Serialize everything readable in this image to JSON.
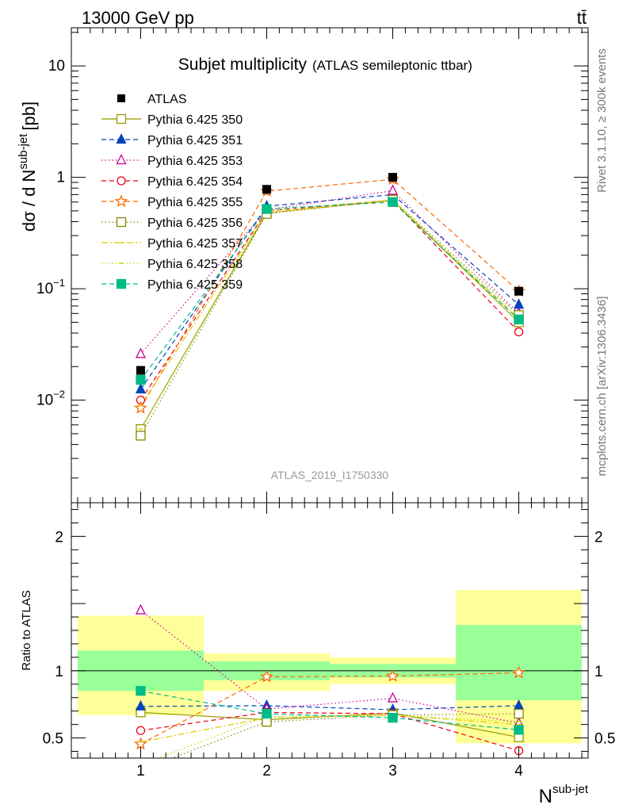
{
  "header": {
    "energy_label": "13000 GeV pp",
    "process_label": "tt̄"
  },
  "side_labels": {
    "rivet": "Rivet 3.1.10, ≥ 300k events",
    "mcplots": "mcplots.cern.ch [arXiv:1306.3436]"
  },
  "chart_data": {
    "type": "scatter",
    "title": "Subjet multiplicity",
    "subtitle": "(ATLAS semileptonic ttbar)",
    "analysis_id": "ATLAS_2019_I1750330",
    "xlabel": "N",
    "xlabel_sup": "sub-jet",
    "ylabel_main": "dσ / d N",
    "ylabel_sup": "sub-jet",
    "ylabel_unit": "[pb]",
    "ratio_ylabel": "Ratio to ATLAS",
    "x": [
      1,
      2,
      3,
      4
    ],
    "xlim": [
      0.45,
      4.55
    ],
    "main_ylim_log": [
      0.0012,
      22
    ],
    "ratio_ylim": [
      0.35,
      2.25
    ],
    "x_tick_labels": [
      "1",
      "2",
      "3",
      "4"
    ],
    "main_y_tick_labels": [
      {
        "value": 10,
        "base": "10",
        "exp": ""
      },
      {
        "value": 1,
        "base": "1",
        "exp": ""
      },
      {
        "value": 0.1,
        "base": "10",
        "exp": "−1"
      },
      {
        "value": 0.01,
        "base": "10",
        "exp": "−2"
      }
    ],
    "ratio_y_tick_labels": [
      {
        "value": 2,
        "label": "2"
      },
      {
        "value": 1,
        "label": "1"
      },
      {
        "value": 0.5,
        "label": "0.5"
      }
    ],
    "data_series": {
      "name": "ATLAS",
      "values": [
        0.0185,
        0.78,
        1.0,
        0.095
      ],
      "color": "#000000"
    },
    "uncertainty_bands": {
      "green": [
        [
          0.85,
          1.15
        ],
        [
          0.93,
          1.07
        ],
        [
          0.95,
          1.05
        ],
        [
          0.78,
          1.34
        ]
      ],
      "yellow": [
        [
          0.67,
          1.41
        ],
        [
          0.85,
          1.13
        ],
        [
          0.9,
          1.1
        ],
        [
          0.46,
          1.6
        ]
      ],
      "green_color": "#99ff99",
      "yellow_color": "#ffff99"
    },
    "series": [
      {
        "name": "Pythia 6.425 350",
        "color": "#999900",
        "dash": "",
        "marker": "square-open",
        "values": [
          0.0055,
          0.48,
          0.62,
          0.05
        ],
        "ratio": [
          0.69,
          0.635,
          0.685,
          0.505
        ]
      },
      {
        "name": "Pythia 6.425 351",
        "color": "#0044bb",
        "dash": "6,4",
        "marker": "triangle",
        "values": [
          0.0125,
          0.55,
          0.7,
          0.072
        ],
        "ratio": [
          0.735,
          0.74,
          0.71,
          0.74
        ]
      },
      {
        "name": "Pythia 6.425 353",
        "color": "#cc0099",
        "dash": "1.5,3",
        "marker": "triangle-open",
        "values": [
          0.026,
          0.51,
          0.76,
          0.06
        ],
        "ratio": [
          1.45,
          0.715,
          0.795,
          0.61
        ]
      },
      {
        "name": "Pythia 6.425 354",
        "color": "#ee0011",
        "dash": "6,4",
        "marker": "circle-open",
        "values": [
          0.01,
          0.5,
          0.62,
          0.041
        ],
        "ratio": [
          0.555,
          0.69,
          0.68,
          0.405
        ]
      },
      {
        "name": "Pythia 6.425 355",
        "color": "#ff6600",
        "dash": "6,4",
        "marker": "star-open",
        "values": [
          0.0085,
          0.75,
          0.96,
          0.095
        ],
        "ratio": [
          0.455,
          0.955,
          0.96,
          0.985
        ]
      },
      {
        "name": "Pythia 6.425 356",
        "color": "#888800",
        "dash": "1.5,3",
        "marker": "square-open",
        "values": [
          0.0048,
          0.47,
          0.63,
          0.058
        ],
        "ratio": [
          0.26,
          0.62,
          0.67,
          0.68
        ]
      },
      {
        "name": "Pythia 6.425 357",
        "color": "#ddcc00",
        "dash": "8,3,2,3",
        "marker": "tick",
        "values": [
          0.009,
          0.48,
          0.62,
          0.054
        ],
        "ratio": [
          0.47,
          0.65,
          0.67,
          0.6
        ]
      },
      {
        "name": "Pythia 6.425 358",
        "color": "#bbdd00",
        "dash": "1.5,3",
        "marker": "tick",
        "values": [
          0.0055,
          0.5,
          0.63,
          0.05
        ],
        "ratio": [
          0.3,
          0.66,
          0.67,
          0.62
        ]
      },
      {
        "name": "Pythia 6.425 359",
        "color": "#00bb88",
        "dash": "6,4",
        "marker": "square",
        "values": [
          0.0152,
          0.52,
          0.6,
          0.053
        ],
        "ratio": [
          0.85,
          0.68,
          0.65,
          0.56
        ]
      }
    ]
  }
}
